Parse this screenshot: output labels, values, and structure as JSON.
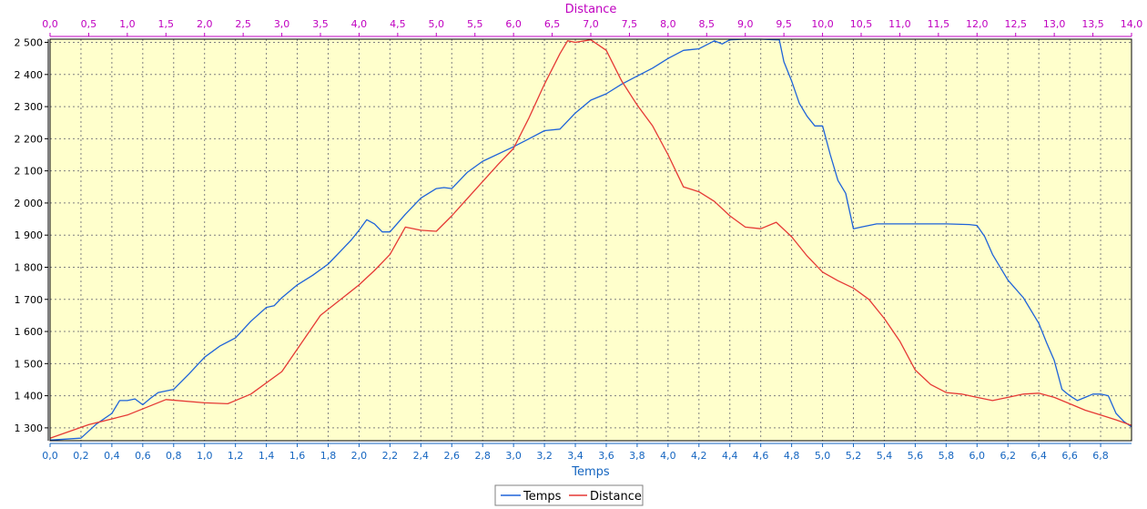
{
  "colors": {
    "plot_background": "#ffffcc",
    "grid": "#808080",
    "bottom_axis": "#1565c0",
    "top_axis": "#c000c0",
    "left_axis": "#000000",
    "series_temps": "#1e63d9",
    "series_distance": "#e53935"
  },
  "chart_data": {
    "type": "line",
    "title": "",
    "xlabel": "Temps",
    "x2label": "Distance",
    "ylabel": "",
    "xlim": [
      0,
      7.0
    ],
    "x2lim": [
      0,
      14.0
    ],
    "ylim": [
      1260,
      2510
    ],
    "x_ticks": [
      "0,0",
      "0,2",
      "0,4",
      "0,6",
      "0,8",
      "1,0",
      "1,2",
      "1,4",
      "1,6",
      "1,8",
      "2,0",
      "2,2",
      "2,4",
      "2,6",
      "2,8",
      "3,0",
      "3,2",
      "3,4",
      "3,6",
      "3,8",
      "4,0",
      "4,2",
      "4,4",
      "4,6",
      "4,8",
      "5,0",
      "5,2",
      "5,4",
      "5,6",
      "5,8",
      "6,0",
      "6,2",
      "6,4",
      "6,6",
      "6,8"
    ],
    "x2_ticks": [
      "0,0",
      "0,5",
      "1,0",
      "1,5",
      "2,0",
      "2,5",
      "3,0",
      "3,5",
      "4,0",
      "4,5",
      "5,0",
      "5,5",
      "6,0",
      "6,5",
      "7,0",
      "7,5",
      "8,0",
      "8,5",
      "9,0",
      "9,5",
      "10,0",
      "10,5",
      "11,0",
      "11,5",
      "12,0",
      "12,5",
      "13,0",
      "13,5",
      "14,0"
    ],
    "y_ticks": [
      "2 500",
      "2 400",
      "2 300",
      "2 200",
      "2 100",
      "2 000",
      "1 900",
      "1 800",
      "1 700",
      "1 600",
      "1 500",
      "1 400",
      "1 300"
    ],
    "grid": true,
    "legend_position": "bottom-center",
    "series": [
      {
        "name": "Temps",
        "axis": "bottom",
        "x": [
          0.0,
          0.2,
          0.3,
          0.4,
          0.45,
          0.5,
          0.55,
          0.6,
          0.65,
          0.7,
          0.8,
          0.9,
          1.0,
          1.1,
          1.2,
          1.3,
          1.4,
          1.45,
          1.5,
          1.6,
          1.7,
          1.8,
          1.9,
          1.95,
          2.0,
          2.05,
          2.1,
          2.15,
          2.2,
          2.3,
          2.4,
          2.5,
          2.55,
          2.6,
          2.7,
          2.8,
          3.0,
          3.1,
          3.2,
          3.3,
          3.4,
          3.5,
          3.6,
          3.7,
          3.8,
          3.9,
          4.0,
          4.1,
          4.2,
          4.3,
          4.35,
          4.4,
          4.5,
          4.6,
          4.7,
          4.72,
          4.75,
          4.8,
          4.85,
          4.9,
          4.95,
          5.0,
          5.05,
          5.1,
          5.15,
          5.2,
          5.25,
          5.3,
          5.35,
          5.4,
          5.6,
          5.8,
          5.95,
          6.0,
          6.05,
          6.1,
          6.2,
          6.3,
          6.4,
          6.45,
          6.5,
          6.55,
          6.6,
          6.65,
          6.7,
          6.75,
          6.8,
          6.85,
          6.9,
          6.95,
          7.0
        ],
        "y": [
          1262,
          1268,
          1312,
          1345,
          1385,
          1385,
          1390,
          1372,
          1392,
          1410,
          1420,
          1468,
          1520,
          1555,
          1580,
          1632,
          1675,
          1680,
          1705,
          1745,
          1775,
          1810,
          1860,
          1885,
          1915,
          1948,
          1935,
          1910,
          1910,
          1965,
          2015,
          2045,
          2048,
          2045,
          2095,
          2130,
          2175,
          2200,
          2225,
          2230,
          2280,
          2320,
          2340,
          2370,
          2395,
          2420,
          2450,
          2475,
          2480,
          2505,
          2495,
          2508,
          2510,
          2510,
          2508,
          2508,
          2440,
          2380,
          2310,
          2270,
          2240,
          2240,
          2150,
          2070,
          2030,
          1920,
          1925,
          1930,
          1935,
          1935,
          1935,
          1935,
          1933,
          1930,
          1895,
          1840,
          1760,
          1705,
          1625,
          1565,
          1510,
          1420,
          1400,
          1385,
          1395,
          1405,
          1405,
          1400,
          1345,
          1320,
          1303
        ]
      },
      {
        "name": "Distance",
        "axis": "top",
        "x": [
          0.0,
          0.5,
          1.0,
          1.5,
          2.0,
          2.3,
          2.6,
          3.0,
          3.5,
          4.0,
          4.2,
          4.4,
          4.6,
          4.8,
          5.0,
          5.2,
          5.5,
          5.8,
          6.0,
          6.2,
          6.4,
          6.6,
          6.7,
          6.8,
          7.0,
          7.2,
          7.4,
          7.6,
          7.8,
          8.0,
          8.2,
          8.4,
          8.6,
          8.8,
          9.0,
          9.2,
          9.4,
          9.6,
          9.8,
          10.0,
          10.2,
          10.4,
          10.6,
          10.8,
          11.0,
          11.2,
          11.4,
          11.6,
          11.8,
          12.0,
          12.2,
          12.4,
          12.6,
          12.8,
          13.0,
          13.2,
          13.4,
          13.6,
          13.8,
          14.0
        ],
        "y": [
          1268,
          1310,
          1340,
          1388,
          1378,
          1375,
          1405,
          1475,
          1650,
          1745,
          1790,
          1840,
          1925,
          1915,
          1912,
          1960,
          2040,
          2120,
          2170,
          2265,
          2370,
          2465,
          2505,
          2500,
          2508,
          2475,
          2380,
          2305,
          2240,
          2150,
          2050,
          2035,
          2005,
          1960,
          1925,
          1920,
          1940,
          1895,
          1835,
          1785,
          1758,
          1735,
          1700,
          1640,
          1570,
          1480,
          1435,
          1410,
          1405,
          1395,
          1385,
          1395,
          1405,
          1408,
          1395,
          1375,
          1355,
          1340,
          1325,
          1308
        ]
      }
    ]
  }
}
